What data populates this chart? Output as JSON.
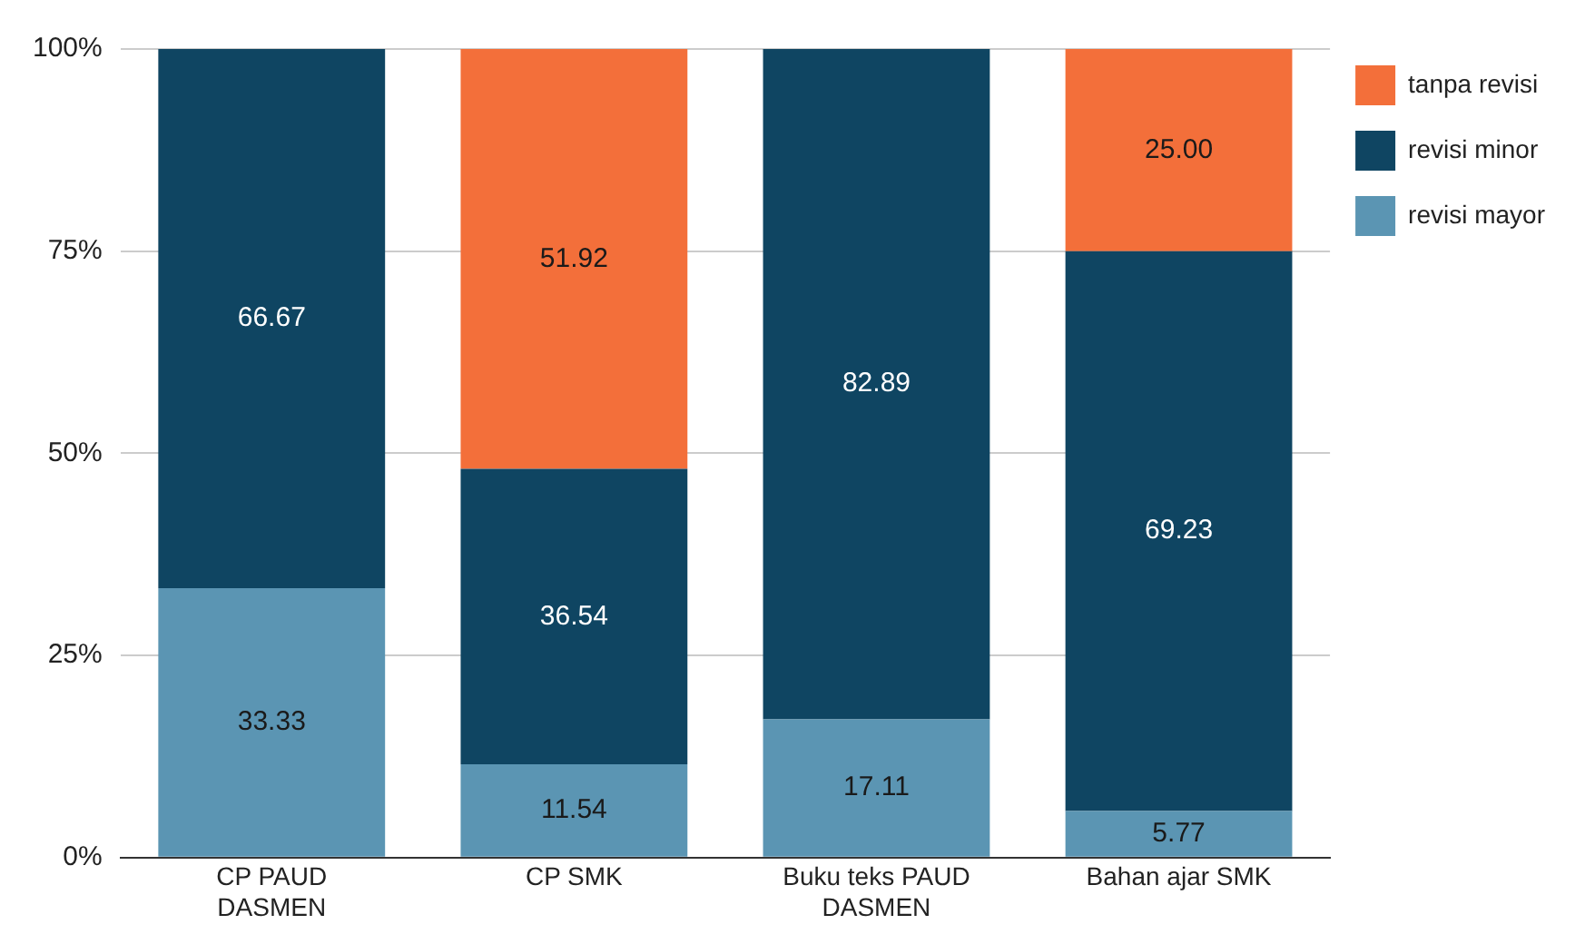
{
  "chart_data": {
    "type": "bar",
    "stacked": true,
    "categories": [
      "CP PAUD DASMEN",
      "CP SMK",
      "Buku teks PAUD DASMEN",
      "Bahan ajar SMK"
    ],
    "series": [
      {
        "name": "revisi mayor",
        "color": "#5b95b3",
        "values": [
          33.33,
          11.54,
          17.11,
          5.77
        ],
        "value_labels": [
          "33.33",
          "11.54",
          "17.11",
          "5.77"
        ]
      },
      {
        "name": "revisi minor",
        "color": "#0f4562",
        "values": [
          66.67,
          36.54,
          82.89,
          69.23
        ],
        "value_labels": [
          "66.67",
          "36.54",
          "82.89",
          "69.23"
        ]
      },
      {
        "name": "tanpa revisi",
        "color": "#f36f3a",
        "values": [
          null,
          51.92,
          null,
          25.0
        ],
        "value_labels": [
          null,
          "51.92",
          null,
          "25.00"
        ]
      }
    ],
    "ylim": [
      0,
      100
    ],
    "yticks": [
      {
        "value": 0,
        "label": "0%"
      },
      {
        "value": 25,
        "label": "25%"
      },
      {
        "value": 50,
        "label": "50%"
      },
      {
        "value": 75,
        "label": "75%"
      },
      {
        "value": 100,
        "label": "100%"
      }
    ],
    "grid": "y",
    "legend": "top right"
  }
}
